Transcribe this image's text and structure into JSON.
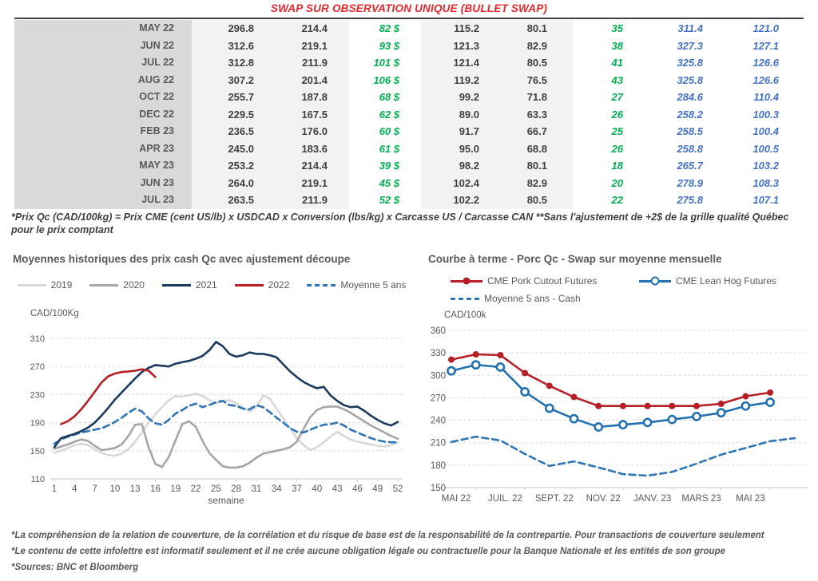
{
  "title": "SWAP SUR OBSERVATION UNIQUE (BULLET SWAP)",
  "table": {
    "rows": [
      {
        "month": "MAY 22",
        "values": [
          "296.8",
          "214.4",
          "82 $",
          "115.2",
          "80.1",
          "35",
          "311.4",
          "121.0"
        ]
      },
      {
        "month": "JUN 22",
        "values": [
          "312.6",
          "219.1",
          "93 $",
          "121.3",
          "82.9",
          "38",
          "327.3",
          "127.1"
        ]
      },
      {
        "month": "JUL 22",
        "values": [
          "312.8",
          "211.9",
          "101 $",
          "121.4",
          "80.5",
          "41",
          "325.8",
          "126.6"
        ]
      },
      {
        "month": "AUG 22",
        "values": [
          "307.2",
          "201.4",
          "106 $",
          "119.2",
          "76.5",
          "43",
          "325.8",
          "126.6"
        ]
      },
      {
        "month": "OCT 22",
        "values": [
          "255.7",
          "187.8",
          "68 $",
          "99.2",
          "71.8",
          "27",
          "284.6",
          "110.4"
        ]
      },
      {
        "month": "DEC 22",
        "values": [
          "229.5",
          "167.5",
          "62 $",
          "89.0",
          "63.3",
          "26",
          "258.2",
          "100.3"
        ]
      },
      {
        "month": "FEB 23",
        "values": [
          "236.5",
          "176.0",
          "60 $",
          "91.7",
          "66.7",
          "25",
          "258.5",
          "100.4"
        ]
      },
      {
        "month": "APR 23",
        "values": [
          "245.0",
          "183.6",
          "61 $",
          "95.0",
          "68.8",
          "26",
          "258.8",
          "100.5"
        ]
      },
      {
        "month": "MAY 23",
        "values": [
          "253.2",
          "214.4",
          "39 $",
          "98.2",
          "80.1",
          "18",
          "265.7",
          "103.2"
        ]
      },
      {
        "month": "JUN 23",
        "values": [
          "264.0",
          "219.1",
          "45 $",
          "102.4",
          "82.9",
          "20",
          "278.9",
          "108.3"
        ]
      },
      {
        "month": "JUL 23",
        "values": [
          "263.5",
          "211.9",
          "52 $",
          "102.2",
          "80.5",
          "22",
          "275.8",
          "107.1"
        ]
      }
    ]
  },
  "table_footnote": "*Prix Qc (CAD/100kg) = Prix CME (cent US/lb) x USDCAD x Conversion (lbs/kg) x Carcasse US / Carcasse CAN **Sans l'ajustement de +2$ de la grille qualité Québec pour le prix comptant",
  "chart_data": [
    {
      "type": "line",
      "title": "Moyennes historiques des prix cash Qc avec ajustement découpe",
      "ylabel": "CAD/100Kg",
      "xlabel": "semaine",
      "ylim": [
        110,
        310
      ],
      "yticks": [
        110,
        150,
        190,
        230,
        270,
        310
      ],
      "xticks": [
        1,
        4,
        7,
        10,
        13,
        16,
        19,
        22,
        25,
        28,
        31,
        34,
        37,
        40,
        43,
        46,
        49,
        52
      ],
      "grid": "dashed-horizontal",
      "legend_position": "top",
      "series": [
        {
          "name": "2019",
          "color": "#d8d8d8",
          "dash": false,
          "start_week": 1,
          "values": [
            147,
            150,
            154,
            158,
            160,
            158,
            152,
            147,
            144,
            143,
            146,
            152,
            163,
            176,
            190,
            202,
            212,
            222,
            228,
            227,
            229,
            231,
            228,
            222,
            218,
            220,
            222,
            218,
            211,
            206,
            212,
            229,
            224,
            210,
            196,
            182,
            168,
            158,
            151,
            155,
            162,
            170,
            177,
            171,
            166,
            163,
            161,
            159,
            157,
            156,
            158,
            162
          ]
        },
        {
          "name": "2020",
          "color": "#a6a6a6",
          "dash": false,
          "start_week": 1,
          "values": [
            153,
            156,
            159,
            163,
            166,
            164,
            157,
            151,
            152,
            154,
            159,
            171,
            187,
            188,
            155,
            131,
            127,
            141,
            165,
            188,
            192,
            184,
            164,
            147,
            137,
            128,
            126,
            126,
            128,
            133,
            140,
            146,
            148,
            150,
            152,
            155,
            163,
            181,
            198,
            208,
            212,
            213,
            213,
            209,
            204,
            198,
            192,
            186,
            181,
            176,
            171,
            167
          ]
        },
        {
          "name": "2021",
          "color": "#1c3a5e",
          "dash": false,
          "start_week": 1,
          "values": [
            155,
            168,
            171,
            174,
            178,
            183,
            190,
            200,
            211,
            223,
            233,
            243,
            253,
            262,
            268,
            272,
            271,
            270,
            274,
            276,
            278,
            281,
            285,
            293,
            305,
            299,
            288,
            284,
            286,
            290,
            288,
            288,
            286,
            283,
            273,
            263,
            255,
            248,
            243,
            239,
            241,
            229,
            221,
            215,
            212,
            213,
            207,
            200,
            194,
            189,
            186,
            191
          ]
        },
        {
          "name": "2022",
          "color": "#b42025",
          "dash": false,
          "start_week": 2,
          "values": [
            188,
            192,
            199,
            209,
            221,
            234,
            247,
            256,
            260,
            262,
            263,
            264,
            266,
            264,
            255
          ]
        },
        {
          "name": "Moyenne 5 ans",
          "color": "#2e75b6",
          "dash": true,
          "start_week": 1,
          "values": [
            160,
            166,
            170,
            173,
            176,
            178,
            180,
            182,
            186,
            191,
            197,
            204,
            210,
            206,
            196,
            189,
            187,
            194,
            203,
            208,
            214,
            217,
            212,
            215,
            219,
            221,
            215,
            214,
            210,
            209,
            215,
            212,
            205,
            197,
            190,
            182,
            177,
            176,
            180,
            184,
            187,
            188,
            190,
            186,
            180,
            176,
            172,
            168,
            165,
            163,
            162,
            162
          ]
        }
      ]
    },
    {
      "type": "line",
      "title": "Courbe à terme - Porc Qc - Swap sur moyenne mensuelle",
      "ylabel": "CAD/100k",
      "ylim": [
        150,
        360
      ],
      "yticks": [
        150,
        180,
        210,
        240,
        270,
        300,
        330,
        360
      ],
      "xtick_labels": [
        "MAI 22",
        "JUIL. 22",
        "SEPT. 22",
        "NOV. 22",
        "JANV. 23",
        "MARS 23",
        "MAI 23"
      ],
      "xtick_indices": [
        0,
        2,
        4,
        6,
        8,
        10,
        12
      ],
      "n_points": 15,
      "grid": "dashed-horizontal",
      "legend_position": "top",
      "series": [
        {
          "name": "CME Pork Cutout Futures",
          "color": "#b42025",
          "marker": "filled",
          "dash": false,
          "values": [
            321,
            328,
            327,
            303,
            286,
            271,
            259,
            259,
            259,
            259,
            259,
            262,
            272,
            277
          ]
        },
        {
          "name": "CME Lean Hog Futures",
          "color": "#2272b2",
          "marker": "open",
          "dash": false,
          "values": [
            306,
            314,
            311,
            278,
            256,
            242,
            231,
            234,
            237,
            241,
            245,
            250,
            259,
            264
          ]
        },
        {
          "name": "Moyenne 5 ans - Cash",
          "color": "#2e75b6",
          "marker": null,
          "dash": true,
          "values": [
            211,
            218,
            213,
            195,
            179,
            185,
            177,
            168,
            166,
            171,
            182,
            194,
            203,
            212,
            216
          ]
        }
      ]
    }
  ],
  "footnotes": {
    "disclaimer1": "*La compréhension de la relation de couverture, de la corrélation et du risque de base est de la responsabilité de la contrepartie. Pour transactions de couverture seulement",
    "disclaimer2": "*Le contenu de cette infolettre est informatif seulement et il ne crée aucune obligation légale ou contractuelle pour la Banque Nationale et les entités de son groupe",
    "sources": "*Sources: BNC et Bloomberg"
  },
  "colors": {
    "title_red": "#e8262b",
    "green_text": "#00b050",
    "blue_text": "#4472c4",
    "dark_text": "#404040",
    "gray_text": "#595959",
    "month_col_bg": "#d9d9d9",
    "num_col_bg": "#f2f2f2"
  }
}
